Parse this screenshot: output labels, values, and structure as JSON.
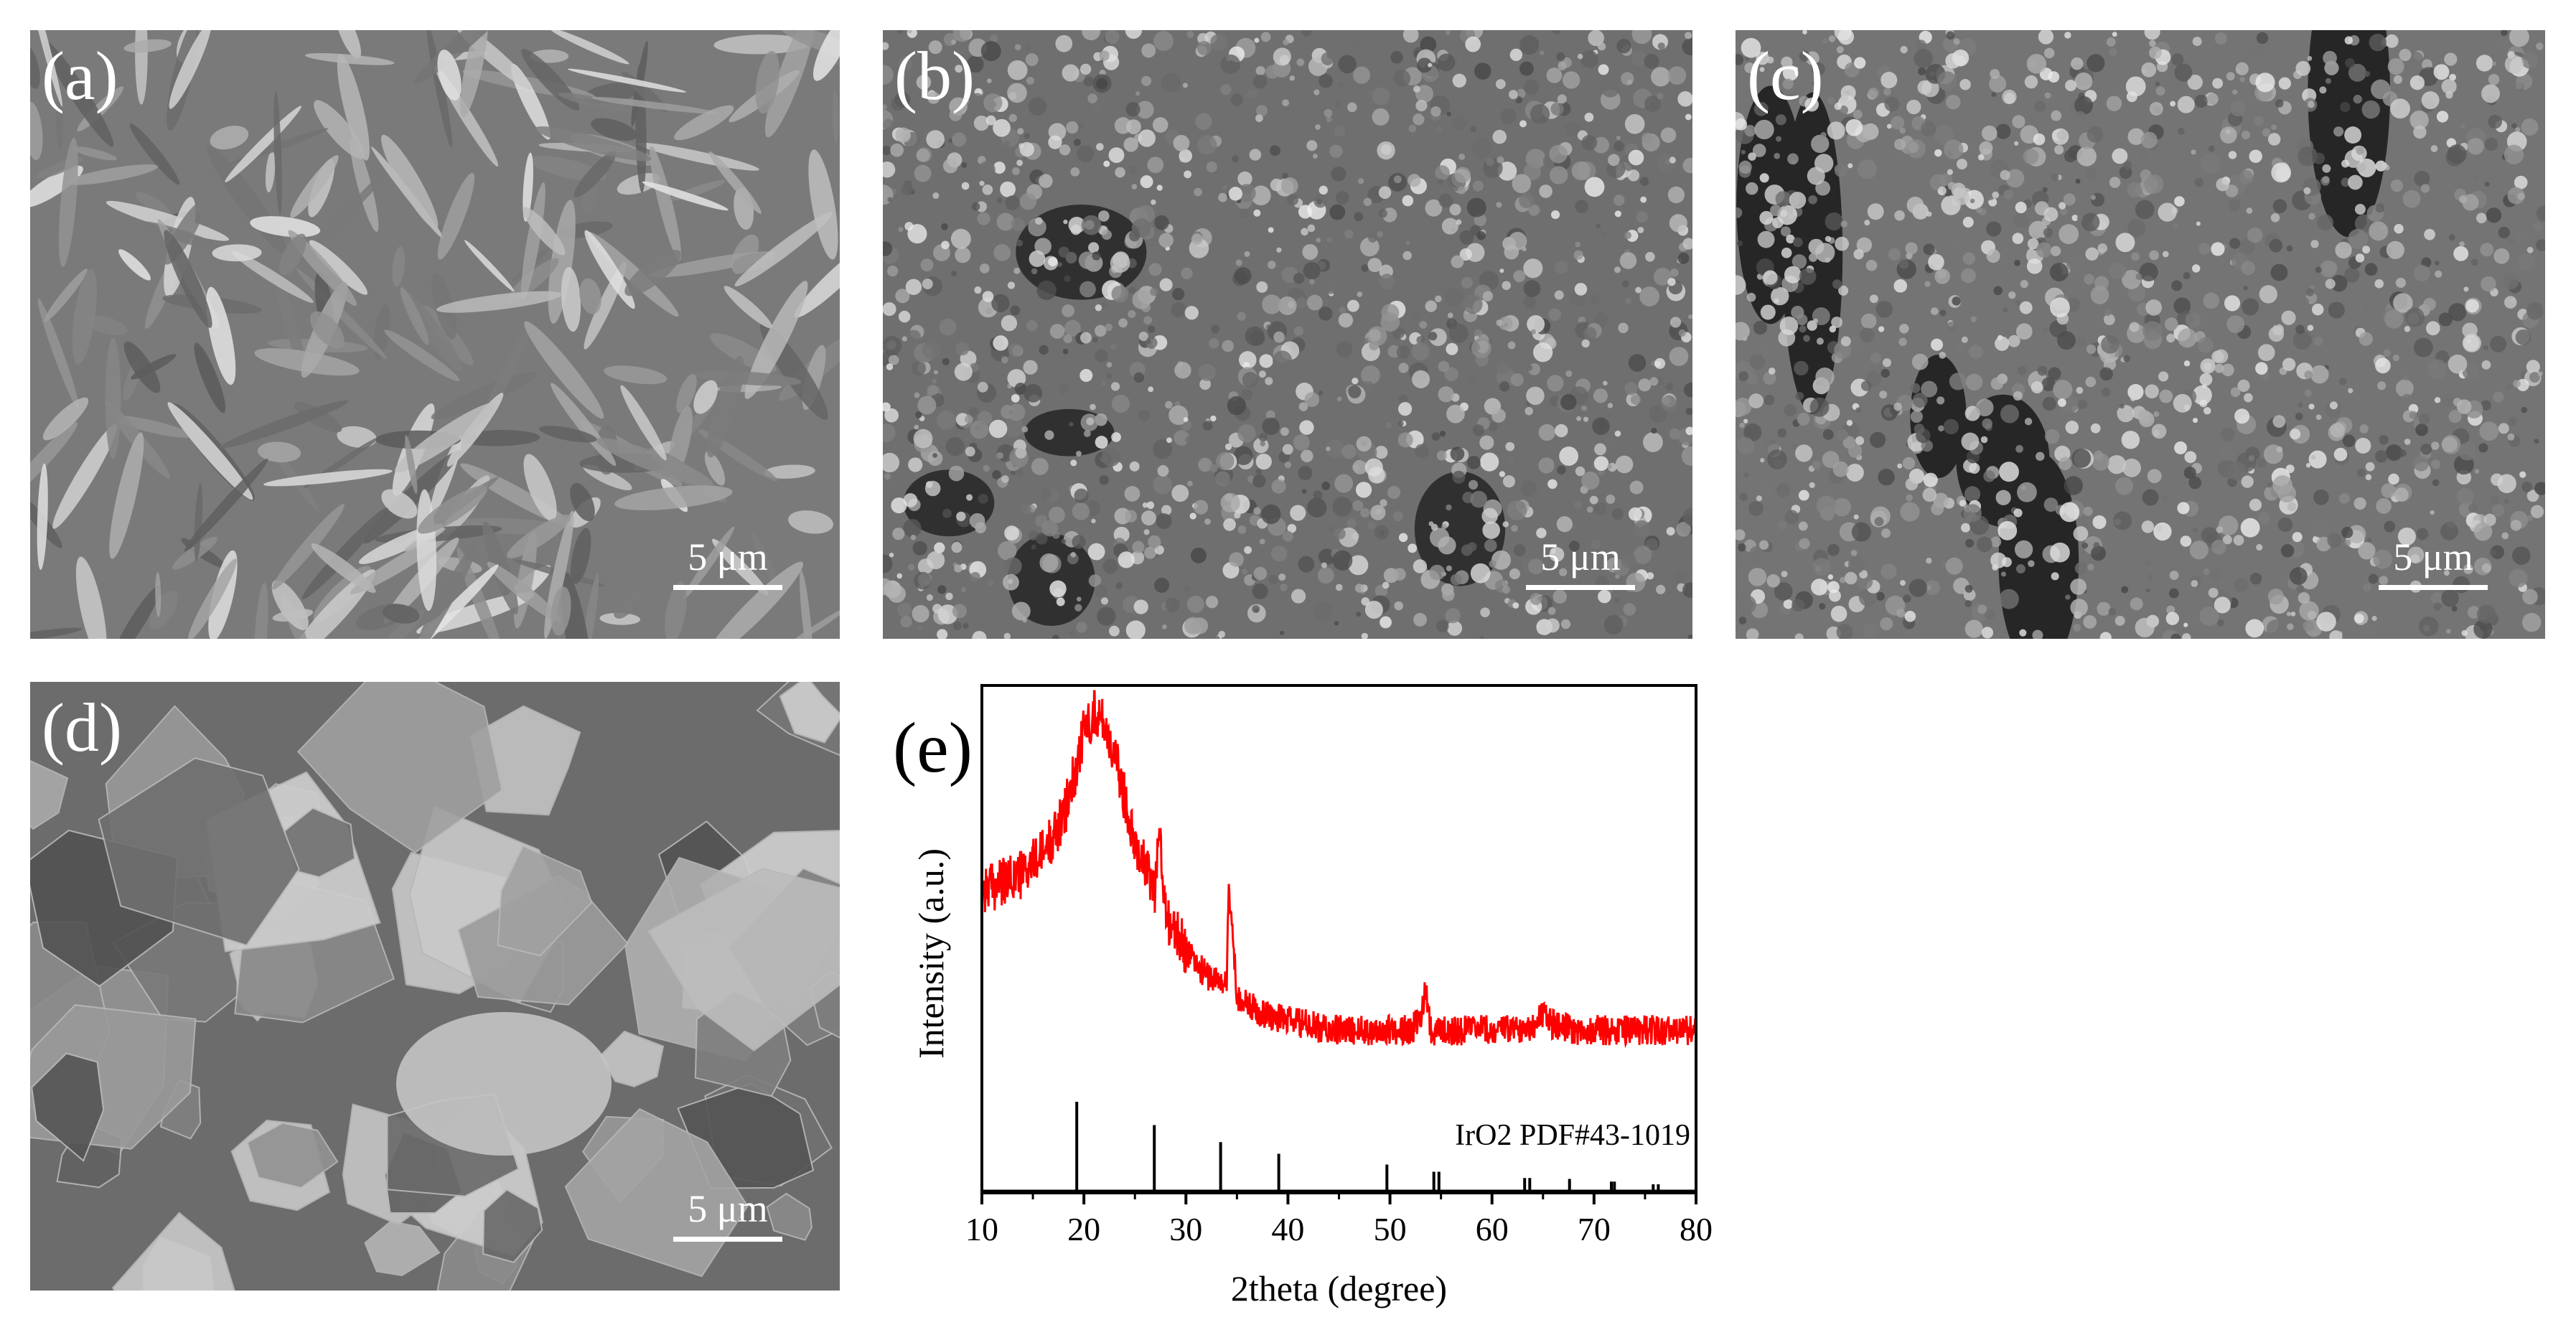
{
  "figure": {
    "panels": [
      {
        "label": "(a)",
        "scale_bar": "5 μm",
        "texture": "flakes"
      },
      {
        "label": "(b)",
        "scale_bar": "5 μm",
        "texture": "granular"
      },
      {
        "label": "(c)",
        "scale_bar": "5 μm",
        "texture": "porous"
      },
      {
        "label": "(d)",
        "scale_bar": "5 μm",
        "texture": "blocks"
      }
    ]
  },
  "chart_data": {
    "type": "line",
    "panel_label": "(e)",
    "xlabel": "2theta (degree)",
    "ylabel": "Intensity (a.u.)",
    "xlim": [
      10,
      80
    ],
    "xticks": [
      10,
      20,
      30,
      40,
      50,
      60,
      70,
      80
    ],
    "y_ticks_shown": false,
    "grid": false,
    "series": [
      {
        "color": "#ff0000",
        "x": [
          10,
          12,
          14,
          16,
          18,
          19,
          20,
          21,
          22,
          23,
          24,
          25,
          26,
          27,
          27.3,
          28,
          29,
          30,
          31,
          32,
          33,
          34,
          34.2,
          35,
          36,
          37,
          38,
          40,
          42,
          44,
          46,
          48,
          50,
          52,
          53,
          53.5,
          54,
          56,
          58,
          60,
          62,
          64,
          65,
          66,
          68,
          70,
          72,
          74,
          76,
          78,
          80
        ],
        "y": [
          0.62,
          0.63,
          0.65,
          0.69,
          0.76,
          0.84,
          0.93,
          0.97,
          0.95,
          0.88,
          0.8,
          0.72,
          0.66,
          0.62,
          0.75,
          0.57,
          0.53,
          0.5,
          0.47,
          0.45,
          0.44,
          0.43,
          0.63,
          0.41,
          0.39,
          0.38,
          0.37,
          0.36,
          0.35,
          0.34,
          0.34,
          0.34,
          0.34,
          0.34,
          0.36,
          0.43,
          0.34,
          0.34,
          0.34,
          0.34,
          0.34,
          0.35,
          0.37,
          0.35,
          0.34,
          0.34,
          0.34,
          0.34,
          0.34,
          0.34,
          0.34
        ]
      }
    ],
    "reference": {
      "label": "IrO2 PDF#43-1019",
      "peaks_x": [
        19.3,
        26.9,
        33.4,
        39.1,
        49.7,
        54.3,
        54.8,
        63.2,
        63.7,
        67.6,
        71.7,
        72.0,
        75.8,
        76.3
      ],
      "peaks_rel": [
        1.0,
        0.74,
        0.55,
        0.42,
        0.3,
        0.22,
        0.22,
        0.15,
        0.15,
        0.14,
        0.11,
        0.11,
        0.08,
        0.08
      ]
    }
  }
}
